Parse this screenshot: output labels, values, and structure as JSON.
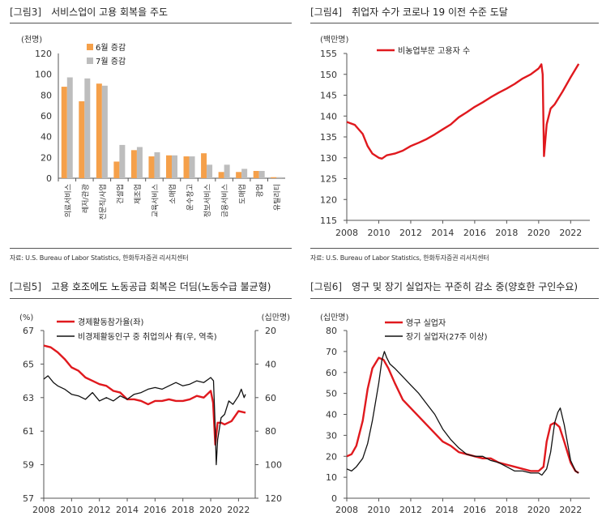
{
  "panels": [
    {
      "tag": "[그림3]",
      "title": "서비스업이 고용 회복을 주도",
      "source": "자료: U.S. Bureau of Labor Statistics, 한화투자증권 리서치센터",
      "chart_data": {
        "type": "bar",
        "unit": "(천명)",
        "categories": [
          "의료서비스",
          "레저/관광",
          "전문직/사업",
          "건설업",
          "제조업",
          "교육서비스",
          "소매업",
          "운수창고",
          "정보서비스",
          "금융서비스",
          "도매업",
          "광업",
          "유틸리티"
        ],
        "series": [
          {
            "name": "6월 증감",
            "color": "#f5a04a",
            "values": [
              88,
              74,
              91,
              16,
              27,
              21,
              22,
              21,
              24,
              6,
              6,
              7,
              1
            ]
          },
          {
            "name": "7월 증감",
            "color": "#bdbdbd",
            "values": [
              97,
              96,
              89,
              32,
              30,
              25,
              22,
              21,
              13,
              13,
              9,
              7,
              1
            ]
          }
        ],
        "ylim": [
          0,
          120
        ],
        "yticks": [
          "0",
          "20",
          "40",
          "60",
          "80",
          "100",
          "120"
        ]
      }
    },
    {
      "tag": "[그림4]",
      "title": "취업자 수가 코로나 19 이전 수준 도달",
      "source": "자료: U.S. Bureau of Labor Statistics, 한화투자증권 리서치센터",
      "chart_data": {
        "type": "line",
        "unit": "(백만명)",
        "series": [
          {
            "name": "비농업부문 고용자 수",
            "color": "#e0191e",
            "points": [
              [
                2008.0,
                138.6
              ],
              [
                2008.5,
                137.9
              ],
              [
                2009.0,
                135.7
              ],
              [
                2009.3,
                132.8
              ],
              [
                2009.6,
                131.0
              ],
              [
                2010.0,
                130.0
              ],
              [
                2010.2,
                129.8
              ],
              [
                2010.5,
                130.6
              ],
              [
                2011.0,
                131.0
              ],
              [
                2011.5,
                131.7
              ],
              [
                2012.0,
                132.8
              ],
              [
                2012.5,
                133.6
              ],
              [
                2013.0,
                134.5
              ],
              [
                2013.5,
                135.6
              ],
              [
                2014.0,
                136.8
              ],
              [
                2014.5,
                138.0
              ],
              [
                2015.0,
                139.7
              ],
              [
                2015.5,
                140.9
              ],
              [
                2016.0,
                142.2
              ],
              [
                2016.5,
                143.3
              ],
              [
                2017.0,
                144.5
              ],
              [
                2017.5,
                145.6
              ],
              [
                2018.0,
                146.6
              ],
              [
                2018.5,
                147.7
              ],
              [
                2019.0,
                149.0
              ],
              [
                2019.5,
                150.0
              ],
              [
                2020.0,
                151.4
              ],
              [
                2020.17,
                152.4
              ],
              [
                2020.25,
                150.0
              ],
              [
                2020.33,
                130.4
              ],
              [
                2020.5,
                138.0
              ],
              [
                2020.75,
                141.8
              ],
              [
                2021.0,
                142.8
              ],
              [
                2021.5,
                145.9
              ],
              [
                2022.0,
                149.3
              ],
              [
                2022.5,
                152.5
              ]
            ]
          }
        ],
        "xlim": [
          2008,
          2023.2
        ],
        "ylim": [
          115,
          155
        ],
        "xticks": [
          "2008",
          "2010",
          "2012",
          "2014",
          "2016",
          "2018",
          "2020",
          "2022"
        ],
        "yticks": [
          "115",
          "120",
          "125",
          "130",
          "135",
          "140",
          "145",
          "150",
          "155"
        ]
      }
    },
    {
      "tag": "[그림5]",
      "title": "고용 호조에도 노동공급 회복은 더딤(노동수급 불균형)",
      "chart_data": {
        "type": "line",
        "unit_left": "(%)",
        "unit_right": "(십만명)",
        "series": [
          {
            "name": "경제활동참가율(좌)",
            "color": "#e0191e",
            "axis": "left",
            "points": [
              [
                2008.0,
                66.1
              ],
              [
                2008.5,
                66.0
              ],
              [
                2009.0,
                65.7
              ],
              [
                2009.5,
                65.3
              ],
              [
                2010.0,
                64.8
              ],
              [
                2010.5,
                64.6
              ],
              [
                2011.0,
                64.2
              ],
              [
                2011.5,
                64.0
              ],
              [
                2012.0,
                63.8
              ],
              [
                2012.5,
                63.7
              ],
              [
                2013.0,
                63.4
              ],
              [
                2013.5,
                63.3
              ],
              [
                2014.0,
                62.9
              ],
              [
                2014.5,
                62.9
              ],
              [
                2015.0,
                62.8
              ],
              [
                2015.5,
                62.6
              ],
              [
                2016.0,
                62.8
              ],
              [
                2016.5,
                62.8
              ],
              [
                2017.0,
                62.9
              ],
              [
                2017.5,
                62.8
              ],
              [
                2018.0,
                62.8
              ],
              [
                2018.5,
                62.9
              ],
              [
                2019.0,
                63.1
              ],
              [
                2019.5,
                63.0
              ],
              [
                2020.0,
                63.4
              ],
              [
                2020.17,
                62.7
              ],
              [
                2020.33,
                60.2
              ],
              [
                2020.5,
                61.5
              ],
              [
                2020.75,
                61.5
              ],
              [
                2021.0,
                61.4
              ],
              [
                2021.5,
                61.6
              ],
              [
                2022.0,
                62.2
              ],
              [
                2022.5,
                62.1
              ]
            ]
          },
          {
            "name": "비경제활동인구 중 취업의사 有(우, 역축)",
            "color": "#111111",
            "axis": "right",
            "points": [
              [
                2008.0,
                49
              ],
              [
                2008.3,
                47
              ],
              [
                2008.7,
                51
              ],
              [
                2009.0,
                53
              ],
              [
                2009.5,
                55
              ],
              [
                2010.0,
                58
              ],
              [
                2010.5,
                59
              ],
              [
                2011.0,
                61
              ],
              [
                2011.5,
                57
              ],
              [
                2012.0,
                62
              ],
              [
                2012.5,
                60
              ],
              [
                2013.0,
                62
              ],
              [
                2013.5,
                59
              ],
              [
                2014.0,
                61
              ],
              [
                2014.5,
                58
              ],
              [
                2015.0,
                57
              ],
              [
                2015.5,
                55
              ],
              [
                2016.0,
                54
              ],
              [
                2016.5,
                55
              ],
              [
                2017.0,
                53
              ],
              [
                2017.5,
                51
              ],
              [
                2018.0,
                53
              ],
              [
                2018.5,
                52
              ],
              [
                2019.0,
                50
              ],
              [
                2019.5,
                51
              ],
              [
                2020.0,
                48
              ],
              [
                2020.2,
                50
              ],
              [
                2020.33,
                79
              ],
              [
                2020.4,
                100
              ],
              [
                2020.5,
                85
              ],
              [
                2020.75,
                72
              ],
              [
                2021.0,
                70
              ],
              [
                2021.3,
                62
              ],
              [
                2021.6,
                64
              ],
              [
                2022.0,
                59
              ],
              [
                2022.2,
                55
              ],
              [
                2022.4,
                60
              ],
              [
                2022.5,
                58
              ]
            ]
          }
        ],
        "xlim": [
          2008,
          2023.2
        ],
        "ylim_left": [
          57,
          67
        ],
        "ylim_right": [
          120,
          20
        ],
        "xticks": [
          "2008",
          "2010",
          "2012",
          "2014",
          "2016",
          "2018",
          "2020",
          "2022"
        ],
        "yticks_left": [
          "57",
          "59",
          "61",
          "63",
          "65",
          "67"
        ],
        "yticks_right": [
          "20",
          "40",
          "60",
          "80",
          "100",
          "120"
        ]
      }
    },
    {
      "tag": "[그림6]",
      "title": "영구 및 장기 실업자는 꾸준히 감소 중(양호한 구인수요)",
      "chart_data": {
        "type": "line",
        "unit": "(십만명)",
        "series": [
          {
            "name": "영구 실업자",
            "color": "#e0191e",
            "points": [
              [
                2008.0,
                20
              ],
              [
                2008.3,
                21
              ],
              [
                2008.6,
                25
              ],
              [
                2009.0,
                37
              ],
              [
                2009.3,
                52
              ],
              [
                2009.6,
                62
              ],
              [
                2010.0,
                67
              ],
              [
                2010.3,
                66
              ],
              [
                2010.6,
                62
              ],
              [
                2011.0,
                55
              ],
              [
                2011.5,
                47
              ],
              [
                2012.0,
                43
              ],
              [
                2012.5,
                39
              ],
              [
                2013.0,
                35
              ],
              [
                2013.5,
                31
              ],
              [
                2014.0,
                27
              ],
              [
                2014.5,
                25
              ],
              [
                2015.0,
                22
              ],
              [
                2015.5,
                21
              ],
              [
                2016.0,
                20
              ],
              [
                2016.5,
                19
              ],
              [
                2017.0,
                19
              ],
              [
                2017.5,
                17
              ],
              [
                2018.0,
                16
              ],
              [
                2018.5,
                15
              ],
              [
                2019.0,
                14
              ],
              [
                2019.5,
                13
              ],
              [
                2020.0,
                13
              ],
              [
                2020.3,
                15
              ],
              [
                2020.5,
                27
              ],
              [
                2020.75,
                35
              ],
              [
                2021.0,
                36
              ],
              [
                2021.3,
                34
              ],
              [
                2021.6,
                27
              ],
              [
                2022.0,
                17
              ],
              [
                2022.3,
                13
              ],
              [
                2022.5,
                12
              ]
            ]
          },
          {
            "name": "장기 실업자(27주 이상)",
            "color": "#111111",
            "points": [
              [
                2008.0,
                14
              ],
              [
                2008.3,
                13
              ],
              [
                2008.6,
                15
              ],
              [
                2009.0,
                19
              ],
              [
                2009.3,
                26
              ],
              [
                2009.6,
                37
              ],
              [
                2010.0,
                55
              ],
              [
                2010.2,
                66
              ],
              [
                2010.35,
                70
              ],
              [
                2010.5,
                67
              ],
              [
                2010.7,
                64
              ],
              [
                2011.0,
                62
              ],
              [
                2011.5,
                58
              ],
              [
                2012.0,
                54
              ],
              [
                2012.5,
                50
              ],
              [
                2013.0,
                45
              ],
              [
                2013.5,
                40
              ],
              [
                2014.0,
                33
              ],
              [
                2014.5,
                28
              ],
              [
                2015.0,
                24
              ],
              [
                2015.5,
                21
              ],
              [
                2016.0,
                20
              ],
              [
                2016.5,
                20
              ],
              [
                2017.0,
                18
              ],
              [
                2017.5,
                17
              ],
              [
                2018.0,
                15
              ],
              [
                2018.5,
                13
              ],
              [
                2019.0,
                13
              ],
              [
                2019.5,
                12
              ],
              [
                2020.0,
                12
              ],
              [
                2020.2,
                11
              ],
              [
                2020.5,
                14
              ],
              [
                2020.75,
                22
              ],
              [
                2021.0,
                36
              ],
              [
                2021.2,
                41
              ],
              [
                2021.35,
                43
              ],
              [
                2021.6,
                35
              ],
              [
                2022.0,
                18
              ],
              [
                2022.3,
                13
              ],
              [
                2022.5,
                12
              ]
            ]
          }
        ],
        "xlim": [
          2008,
          2023.2
        ],
        "ylim": [
          0,
          80
        ],
        "xticks": [
          "2008",
          "2010",
          "2012",
          "2014",
          "2016",
          "2018",
          "2020",
          "2022"
        ],
        "yticks": [
          "0",
          "10",
          "20",
          "30",
          "40",
          "50",
          "60",
          "70",
          "80"
        ]
      }
    }
  ]
}
